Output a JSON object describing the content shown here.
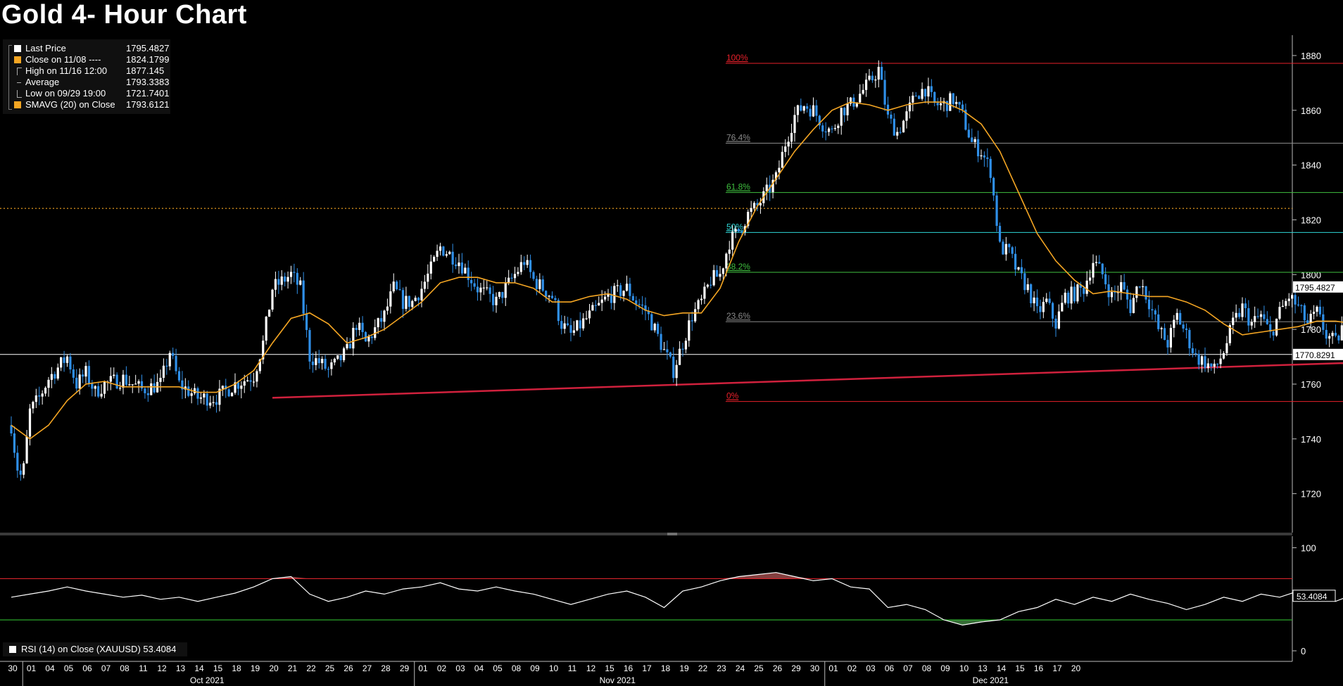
{
  "title": "Gold 4- Hour Chart",
  "legend": [
    {
      "label": "Last Price",
      "value": "1795.4827",
      "symbol": "white-square"
    },
    {
      "label": "Close on 11/08 ----",
      "value": "1824.1799",
      "symbol": "orange-square"
    },
    {
      "label": "High on 11/16 12:00",
      "value": "1877.145",
      "symbol": "high-marker"
    },
    {
      "label": "Average",
      "value": "1793.3383",
      "symbol": "average-marker"
    },
    {
      "label": "Low on 09/29 19:00",
      "value": "1721.7401",
      "symbol": "low-marker"
    },
    {
      "label": "SMAVG (20)  on Close",
      "value": "1793.6121",
      "symbol": "orange-square"
    }
  ],
  "rsi_legend": "RSI (14)  on Close (XAUUSD) 53.4084",
  "colors": {
    "up_candle": "#ffffff",
    "down_candle": "#2f8fe8",
    "sma": "#f5a623",
    "fib_red": "#e8202a",
    "fib_gray": "#8a8a8a",
    "fib_green": "#3fbf3f",
    "fib_cyan": "#2ed6d6",
    "trendline": "#d0213d",
    "rsi_line": "#ffffff",
    "rsi_upper": "#d4232b",
    "rsi_lower": "#2fb82f"
  },
  "chart_data": {
    "type": "candlestick",
    "title": "Gold 4- Hour Chart",
    "ylim": [
      1705,
      1890
    ],
    "y_ticks": [
      1720,
      1740,
      1760,
      1780,
      1800,
      1820,
      1840,
      1860,
      1880
    ],
    "x_day_labels": [
      "30",
      "01",
      "04",
      "05",
      "06",
      "07",
      "08",
      "11",
      "12",
      "13",
      "14",
      "15",
      "18",
      "19",
      "20",
      "21",
      "22",
      "25",
      "26",
      "27",
      "28",
      "29",
      "01",
      "02",
      "03",
      "04",
      "05",
      "08",
      "09",
      "10",
      "11",
      "12",
      "15",
      "16",
      "17",
      "18",
      "19",
      "22",
      "23",
      "24",
      "25",
      "26",
      "29",
      "30",
      "01",
      "02",
      "03",
      "06",
      "07",
      "08",
      "09",
      "10",
      "13",
      "14",
      "15",
      "16",
      "17",
      "20"
    ],
    "x_month_labels": [
      {
        "label": "Oct 2021",
        "day_index": 10.5
      },
      {
        "label": "Nov 2021",
        "day_index": 32.5
      },
      {
        "label": "Dec 2021",
        "day_index": 52.5
      }
    ],
    "month_boundaries": [
      1,
      22,
      44
    ],
    "price_path": [
      [
        0,
        1745
      ],
      [
        0.3,
        1730
      ],
      [
        0.6,
        1725
      ],
      [
        1,
        1750
      ],
      [
        1.5,
        1755
      ],
      [
        2,
        1762
      ],
      [
        2.5,
        1766
      ],
      [
        3,
        1770
      ],
      [
        3.5,
        1760
      ],
      [
        4,
        1764
      ],
      [
        4.5,
        1757
      ],
      [
        5,
        1760
      ],
      [
        6,
        1762
      ],
      [
        7,
        1758
      ],
      [
        8,
        1760
      ],
      [
        8.5,
        1772
      ],
      [
        9,
        1760
      ],
      [
        10,
        1755
      ],
      [
        11,
        1755
      ],
      [
        12,
        1760
      ],
      [
        13,
        1763
      ],
      [
        13.5,
        1775
      ],
      [
        14,
        1795
      ],
      [
        15,
        1800
      ],
      [
        15.5,
        1795
      ],
      [
        16,
        1770
      ],
      [
        16.5,
        1768
      ],
      [
        17,
        1765
      ],
      [
        17.5,
        1768
      ],
      [
        18,
        1772
      ],
      [
        18.5,
        1782
      ],
      [
        19,
        1775
      ],
      [
        20,
        1785
      ],
      [
        20.5,
        1795
      ],
      [
        21,
        1790
      ],
      [
        21.5,
        1790
      ],
      [
        22,
        1795
      ],
      [
        22.5,
        1802
      ],
      [
        23,
        1810
      ],
      [
        24,
        1805
      ],
      [
        24.5,
        1800
      ],
      [
        25,
        1795
      ],
      [
        26,
        1790
      ],
      [
        27,
        1800
      ],
      [
        27.5,
        1805
      ],
      [
        28,
        1798
      ],
      [
        29,
        1792
      ],
      [
        29.5,
        1782
      ],
      [
        30,
        1778
      ],
      [
        31,
        1785
      ],
      [
        32,
        1792
      ],
      [
        33,
        1795
      ],
      [
        33.5,
        1790
      ],
      [
        34,
        1787
      ],
      [
        34.5,
        1780
      ],
      [
        35,
        1772
      ],
      [
        35.5,
        1765
      ],
      [
        36,
        1775
      ],
      [
        36.5,
        1785
      ],
      [
        37,
        1790
      ],
      [
        37.5,
        1798
      ],
      [
        38,
        1800
      ],
      [
        38.5,
        1812
      ],
      [
        39,
        1816
      ],
      [
        39.5,
        1822
      ],
      [
        40,
        1825
      ],
      [
        40.5,
        1830
      ],
      [
        41,
        1835
      ],
      [
        41.5,
        1848
      ],
      [
        42,
        1858
      ],
      [
        42.5,
        1862
      ],
      [
        43,
        1860
      ],
      [
        43.5,
        1855
      ],
      [
        44,
        1852
      ],
      [
        44.5,
        1860
      ],
      [
        45,
        1862
      ],
      [
        45.5,
        1866
      ],
      [
        46,
        1870
      ],
      [
        46.5,
        1875
      ],
      [
        47,
        1857
      ],
      [
        47.5,
        1852
      ],
      [
        48,
        1858
      ],
      [
        48.5,
        1866
      ],
      [
        49,
        1868
      ],
      [
        49.5,
        1862
      ],
      [
        50,
        1862
      ],
      [
        50.5,
        1864
      ],
      [
        51,
        1858
      ],
      [
        51.5,
        1848
      ],
      [
        52,
        1845
      ],
      [
        52.5,
        1838
      ],
      [
        53,
        1810
      ],
      [
        53.5,
        1808
      ],
      [
        54,
        1800
      ],
      [
        54.5,
        1795
      ],
      [
        55,
        1786
      ],
      [
        55.5,
        1790
      ],
      [
        56,
        1782
      ],
      [
        56.5,
        1792
      ],
      [
        57,
        1793
      ],
      [
        57.5,
        1795
      ],
      [
        58,
        1805
      ],
      [
        58.5,
        1800
      ],
      [
        59,
        1792
      ],
      [
        59.5,
        1796
      ],
      [
        60,
        1788
      ],
      [
        60.5,
        1798
      ],
      [
        61,
        1790
      ],
      [
        61.5,
        1780
      ],
      [
        62,
        1775
      ],
      [
        62.5,
        1785
      ],
      [
        63,
        1778
      ],
      [
        63.5,
        1770
      ],
      [
        64,
        1768
      ],
      [
        64.5,
        1765
      ],
      [
        65,
        1772
      ],
      [
        65.5,
        1782
      ],
      [
        66,
        1788
      ],
      [
        66.5,
        1782
      ],
      [
        67,
        1785
      ],
      [
        67.5,
        1778
      ],
      [
        68,
        1786
      ],
      [
        68.5,
        1792
      ],
      [
        69,
        1788
      ],
      [
        69.5,
        1782
      ],
      [
        70,
        1786
      ],
      [
        70.5,
        1778
      ],
      [
        71,
        1775
      ],
      [
        71.5,
        1783
      ],
      [
        72,
        1788
      ],
      [
        72.5,
        1790
      ],
      [
        73,
        1785
      ],
      [
        73.5,
        1788
      ],
      [
        74,
        1782
      ],
      [
        74.5,
        1772
      ],
      [
        75,
        1770
      ],
      [
        75.5,
        1768
      ],
      [
        76,
        1763
      ],
      [
        76.5,
        1782
      ],
      [
        77,
        1790
      ],
      [
        77.5,
        1800
      ],
      [
        78,
        1805
      ],
      [
        78.5,
        1810
      ],
      [
        79,
        1806
      ],
      [
        79.5,
        1800
      ],
      [
        80,
        1798
      ],
      [
        80.5,
        1795
      ]
    ],
    "series": [
      {
        "name": "SMAVG (20)  on Close",
        "points": [
          [
            0,
            1745
          ],
          [
            1,
            1740
          ],
          [
            2,
            1745
          ],
          [
            3,
            1754
          ],
          [
            4,
            1760
          ],
          [
            5,
            1761
          ],
          [
            6,
            1759
          ],
          [
            7,
            1759
          ],
          [
            8,
            1759
          ],
          [
            9,
            1759
          ],
          [
            10,
            1757
          ],
          [
            11,
            1757
          ],
          [
            12,
            1760
          ],
          [
            13,
            1765
          ],
          [
            14,
            1775
          ],
          [
            15,
            1784
          ],
          [
            16,
            1786
          ],
          [
            17,
            1782
          ],
          [
            18,
            1775
          ],
          [
            19,
            1777
          ],
          [
            20,
            1780
          ],
          [
            21,
            1785
          ],
          [
            22,
            1790
          ],
          [
            23,
            1797
          ],
          [
            24,
            1799
          ],
          [
            25,
            1799
          ],
          [
            26,
            1797
          ],
          [
            27,
            1797
          ],
          [
            28,
            1795
          ],
          [
            29,
            1790
          ],
          [
            30,
            1790
          ],
          [
            31,
            1792
          ],
          [
            32,
            1793
          ],
          [
            33,
            1791
          ],
          [
            34,
            1787
          ],
          [
            35,
            1785
          ],
          [
            36,
            1786
          ],
          [
            37,
            1786
          ],
          [
            38,
            1795
          ],
          [
            39,
            1812
          ],
          [
            40,
            1825
          ],
          [
            41,
            1835
          ],
          [
            42,
            1845
          ],
          [
            43,
            1853
          ],
          [
            44,
            1860
          ],
          [
            45,
            1863
          ],
          [
            46,
            1862
          ],
          [
            47,
            1860
          ],
          [
            48,
            1862
          ],
          [
            49,
            1863
          ],
          [
            50,
            1863
          ],
          [
            51,
            1860
          ],
          [
            52,
            1855
          ],
          [
            53,
            1845
          ],
          [
            54,
            1830
          ],
          [
            55,
            1815
          ],
          [
            56,
            1805
          ],
          [
            57,
            1798
          ],
          [
            58,
            1793
          ],
          [
            59,
            1794
          ],
          [
            60,
            1793
          ],
          [
            61,
            1792
          ],
          [
            62,
            1792
          ],
          [
            63,
            1790
          ],
          [
            64,
            1787
          ],
          [
            65,
            1782
          ],
          [
            66,
            1778
          ],
          [
            67,
            1779
          ],
          [
            68,
            1780
          ],
          [
            69,
            1781
          ],
          [
            70,
            1783
          ],
          [
            71,
            1783
          ],
          [
            72,
            1782
          ],
          [
            73,
            1783
          ],
          [
            74,
            1783
          ],
          [
            75,
            1780
          ],
          [
            76,
            1779
          ],
          [
            77,
            1781
          ],
          [
            78,
            1785
          ],
          [
            79,
            1789
          ],
          [
            80,
            1793
          ]
        ]
      }
    ],
    "fib_levels": [
      {
        "pct": "100%",
        "value": 1877.145,
        "label": "1877.145",
        "color": "#e8202a"
      },
      {
        "pct": "76.4%",
        "value": 1848.0013,
        "label": "1848.0013",
        "color": "#8a8a8a"
      },
      {
        "pct": "61.8%",
        "value": 1829.9718,
        "label": "1829.9718",
        "color": "#3fbf3f"
      },
      {
        "pct": "50%",
        "value": 1815.4,
        "label": "1815.40",
        "color": "#2ed6d6"
      },
      {
        "pct": "38.2%",
        "value": 1800.8282,
        "label": "1800.8282",
        "color": "#3fbf3f"
      },
      {
        "pct": "23.6%",
        "value": 1782.7987,
        "label": "1782.7987",
        "color": "#8a8a8a"
      },
      {
        "pct": "0%",
        "value": 1753.655,
        "label": "1753.655",
        "color": "#e8202a"
      }
    ],
    "fib_x_range": [
      38.3,
      81.5
    ],
    "trendline": {
      "x1": 14,
      "y1": 1755,
      "x2": 91,
      "y2": 1772
    },
    "close_line": {
      "value": 1824.1799,
      "label": "Close on 11/08"
    },
    "support_line": {
      "value": 1770.8291,
      "label": "1770.8291"
    },
    "last_price": {
      "value": 1795.4827,
      "label": "1795.4827"
    },
    "rsi": {
      "label": "RSI (14)  on Close (XAUUSD)",
      "last": 53.4084,
      "last_label": "53.4084",
      "ylim": [
        0,
        100
      ],
      "y_ticks": [
        0,
        100
      ],
      "upper": 70,
      "lower": 30,
      "points": [
        [
          0,
          52
        ],
        [
          1,
          55
        ],
        [
          2,
          58
        ],
        [
          3,
          62
        ],
        [
          4,
          58
        ],
        [
          5,
          55
        ],
        [
          6,
          52
        ],
        [
          7,
          54
        ],
        [
          8,
          50
        ],
        [
          9,
          52
        ],
        [
          10,
          48
        ],
        [
          11,
          52
        ],
        [
          12,
          56
        ],
        [
          13,
          62
        ],
        [
          14,
          70
        ],
        [
          15,
          72
        ],
        [
          16,
          55
        ],
        [
          17,
          48
        ],
        [
          18,
          52
        ],
        [
          19,
          58
        ],
        [
          20,
          55
        ],
        [
          21,
          60
        ],
        [
          22,
          62
        ],
        [
          23,
          66
        ],
        [
          24,
          60
        ],
        [
          25,
          58
        ],
        [
          26,
          62
        ],
        [
          27,
          58
        ],
        [
          28,
          55
        ],
        [
          29,
          50
        ],
        [
          30,
          45
        ],
        [
          31,
          50
        ],
        [
          32,
          55
        ],
        [
          33,
          58
        ],
        [
          34,
          52
        ],
        [
          35,
          42
        ],
        [
          36,
          58
        ],
        [
          37,
          62
        ],
        [
          38,
          68
        ],
        [
          39,
          72
        ],
        [
          40,
          74
        ],
        [
          41,
          76
        ],
        [
          42,
          72
        ],
        [
          43,
          68
        ],
        [
          44,
          70
        ],
        [
          45,
          62
        ],
        [
          46,
          60
        ],
        [
          47,
          42
        ],
        [
          48,
          45
        ],
        [
          49,
          40
        ],
        [
          50,
          30
        ],
        [
          51,
          25
        ],
        [
          52,
          28
        ],
        [
          53,
          30
        ],
        [
          54,
          38
        ],
        [
          55,
          42
        ],
        [
          56,
          50
        ],
        [
          57,
          45
        ],
        [
          58,
          52
        ],
        [
          59,
          48
        ],
        [
          60,
          55
        ],
        [
          61,
          50
        ],
        [
          62,
          46
        ],
        [
          63,
          40
        ],
        [
          64,
          45
        ],
        [
          65,
          52
        ],
        [
          66,
          48
        ],
        [
          67,
          55
        ],
        [
          68,
          52
        ],
        [
          69,
          58
        ],
        [
          70,
          50
        ],
        [
          71,
          48
        ],
        [
          72,
          55
        ],
        [
          73,
          52
        ],
        [
          74,
          58
        ],
        [
          75,
          45
        ],
        [
          76,
          50
        ],
        [
          77,
          62
        ],
        [
          78,
          68
        ],
        [
          79,
          72
        ],
        [
          80,
          65
        ],
        [
          81,
          58
        ],
        [
          81.5,
          55
        ],
        [
          82,
          53.4
        ]
      ]
    }
  }
}
